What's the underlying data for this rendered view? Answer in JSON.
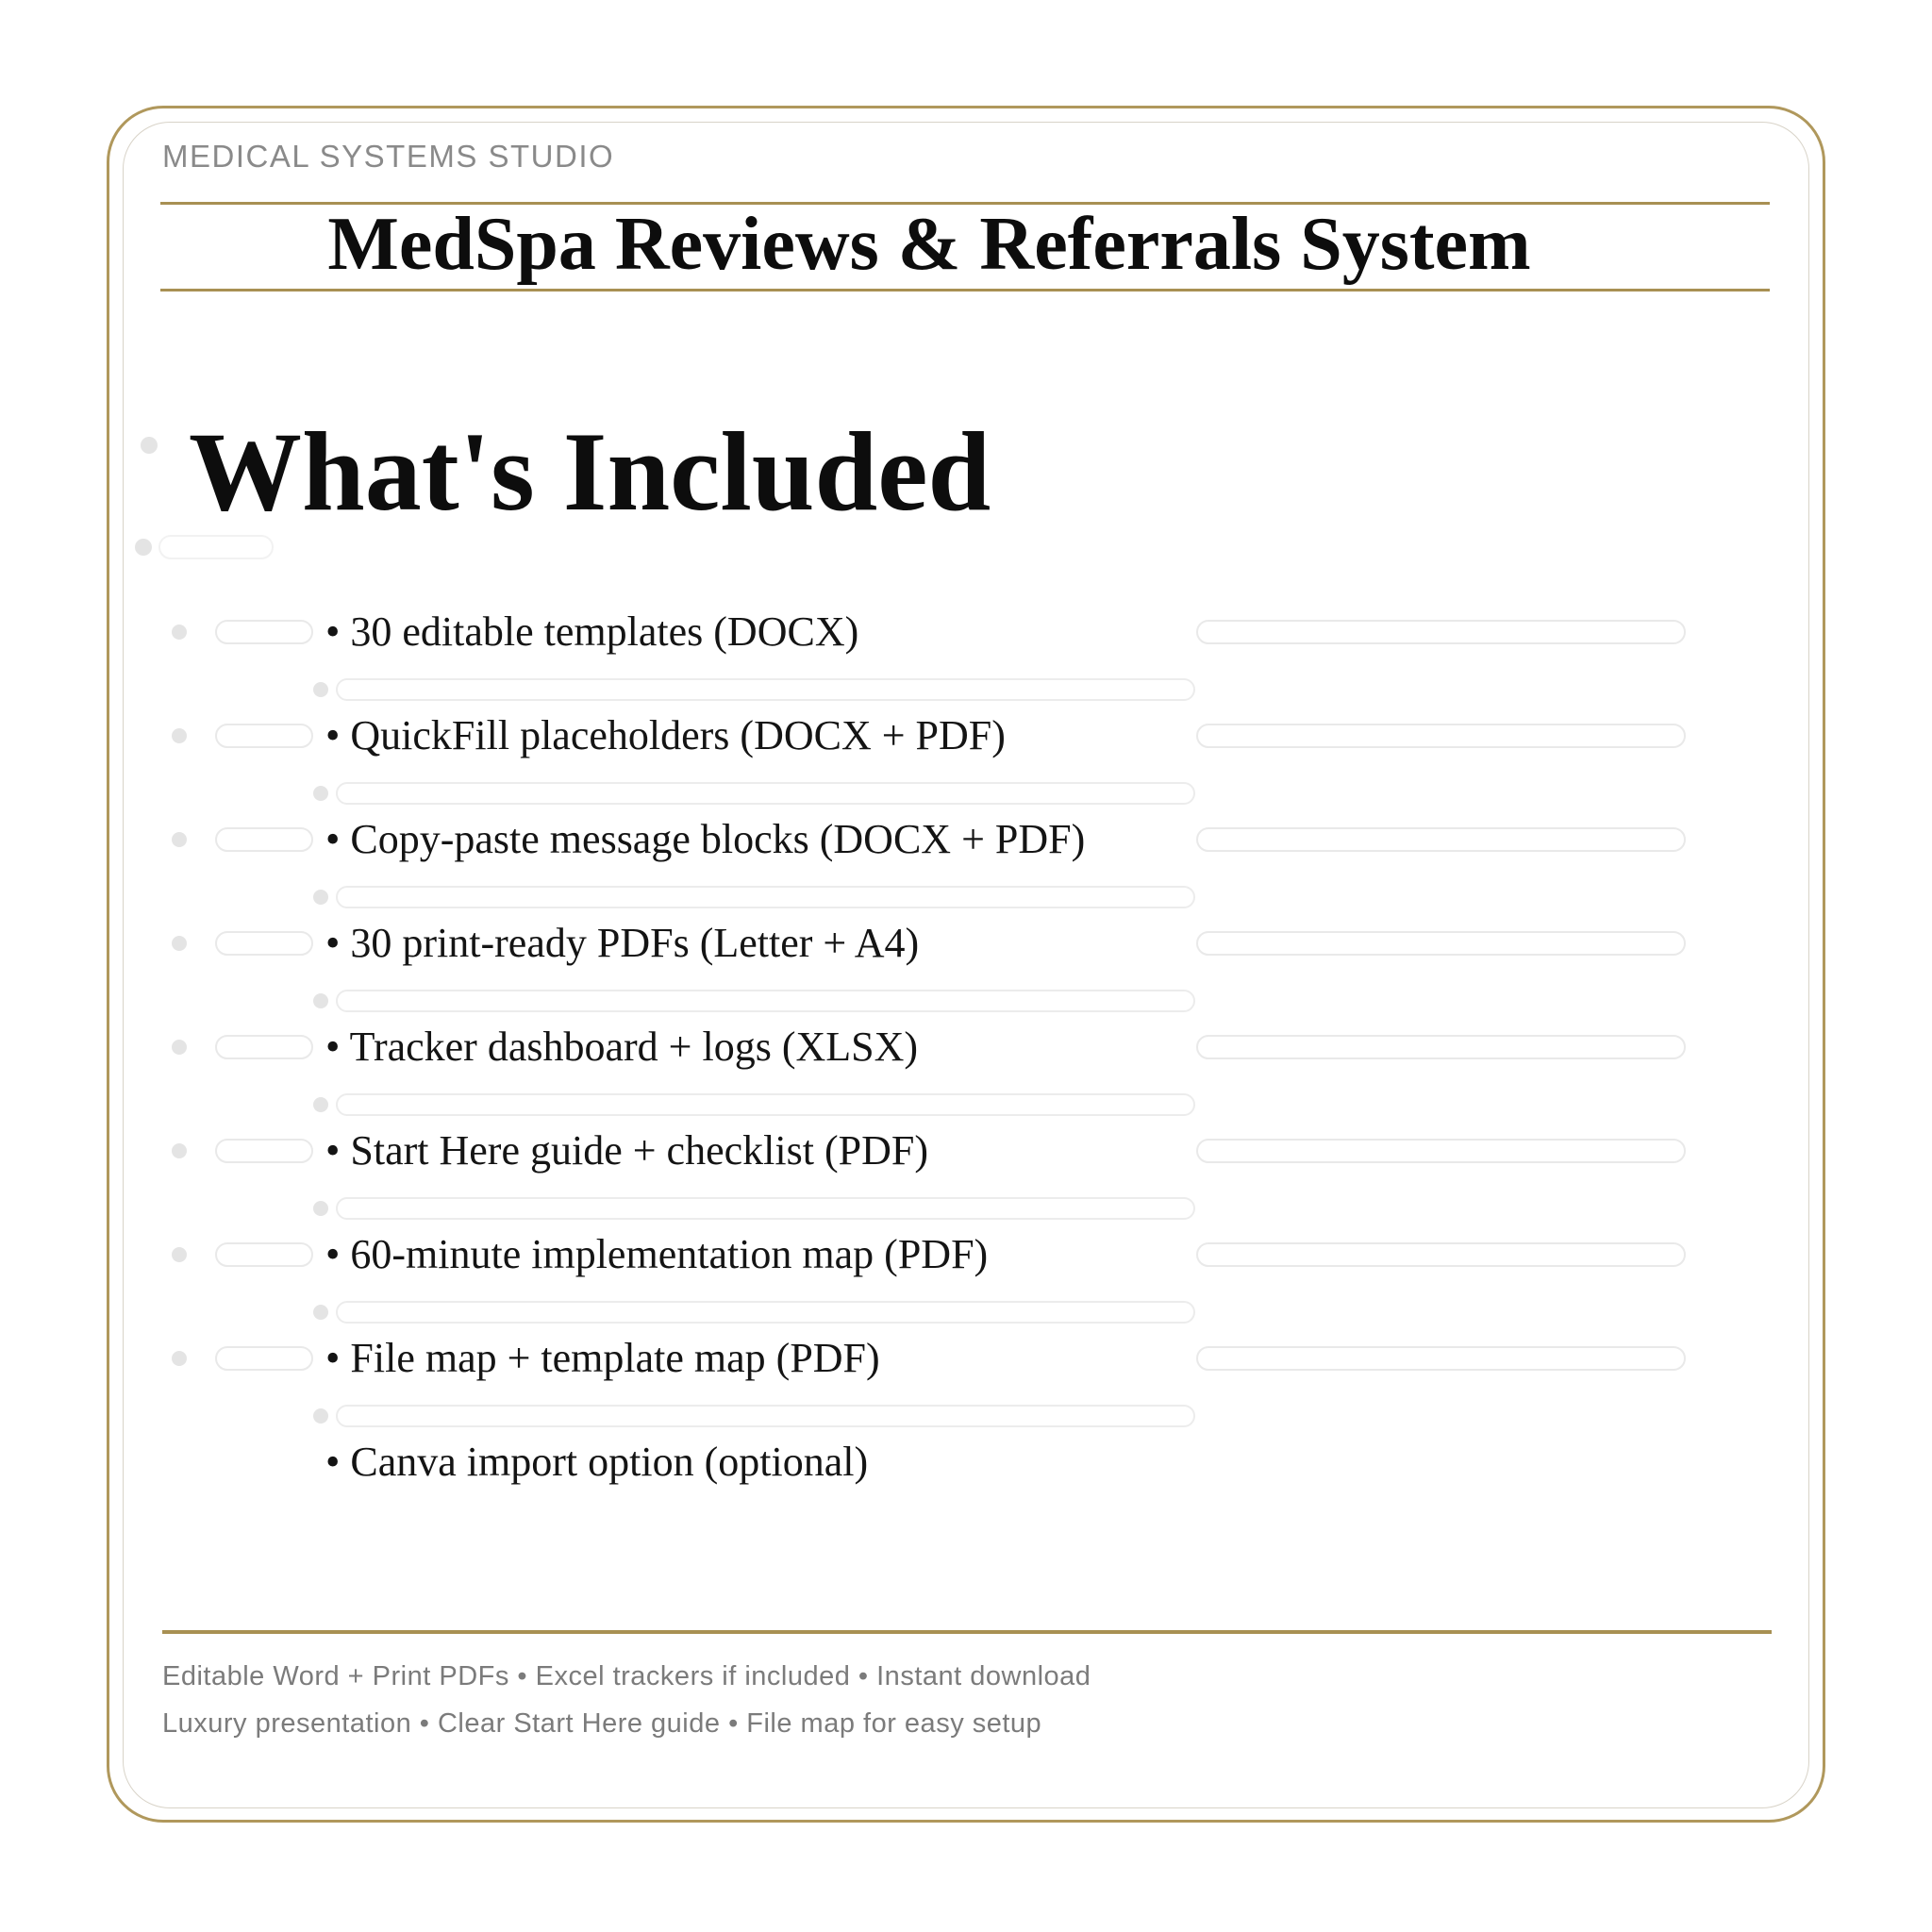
{
  "brand": "MEDICAL SYSTEMS STUDIO",
  "title": "MedSpa Reviews & Referrals System",
  "section_heading": "What's Included",
  "bullet": "•",
  "items": [
    "30 editable templates (DOCX)",
    "QuickFill placeholders (DOCX + PDF)",
    "Copy-paste message blocks (DOCX + PDF)",
    "30 print-ready PDFs (Letter + A4)",
    "Tracker dashboard + logs (XLSX)",
    "Start Here guide + checklist (PDF)",
    "60-minute implementation map (PDF)",
    "File map + template map (PDF)",
    "Canva import option (optional)"
  ],
  "footer": {
    "line1": "Editable Word + Print PDFs • Excel trackers if included • Instant download",
    "line2": "Luxury presentation • Clear Start Here guide • File map for easy setup"
  },
  "colors": {
    "gold_rule": "#a89053",
    "frame_gold": "#b0985c",
    "inner_hairline": "#d8d3c8",
    "heading_text": "#0d0d0d",
    "body_text": "#141414",
    "brand_text": "#8a8a8a",
    "footer_text": "#7b7b7b",
    "skeleton_gray": "#e9e9e9"
  }
}
